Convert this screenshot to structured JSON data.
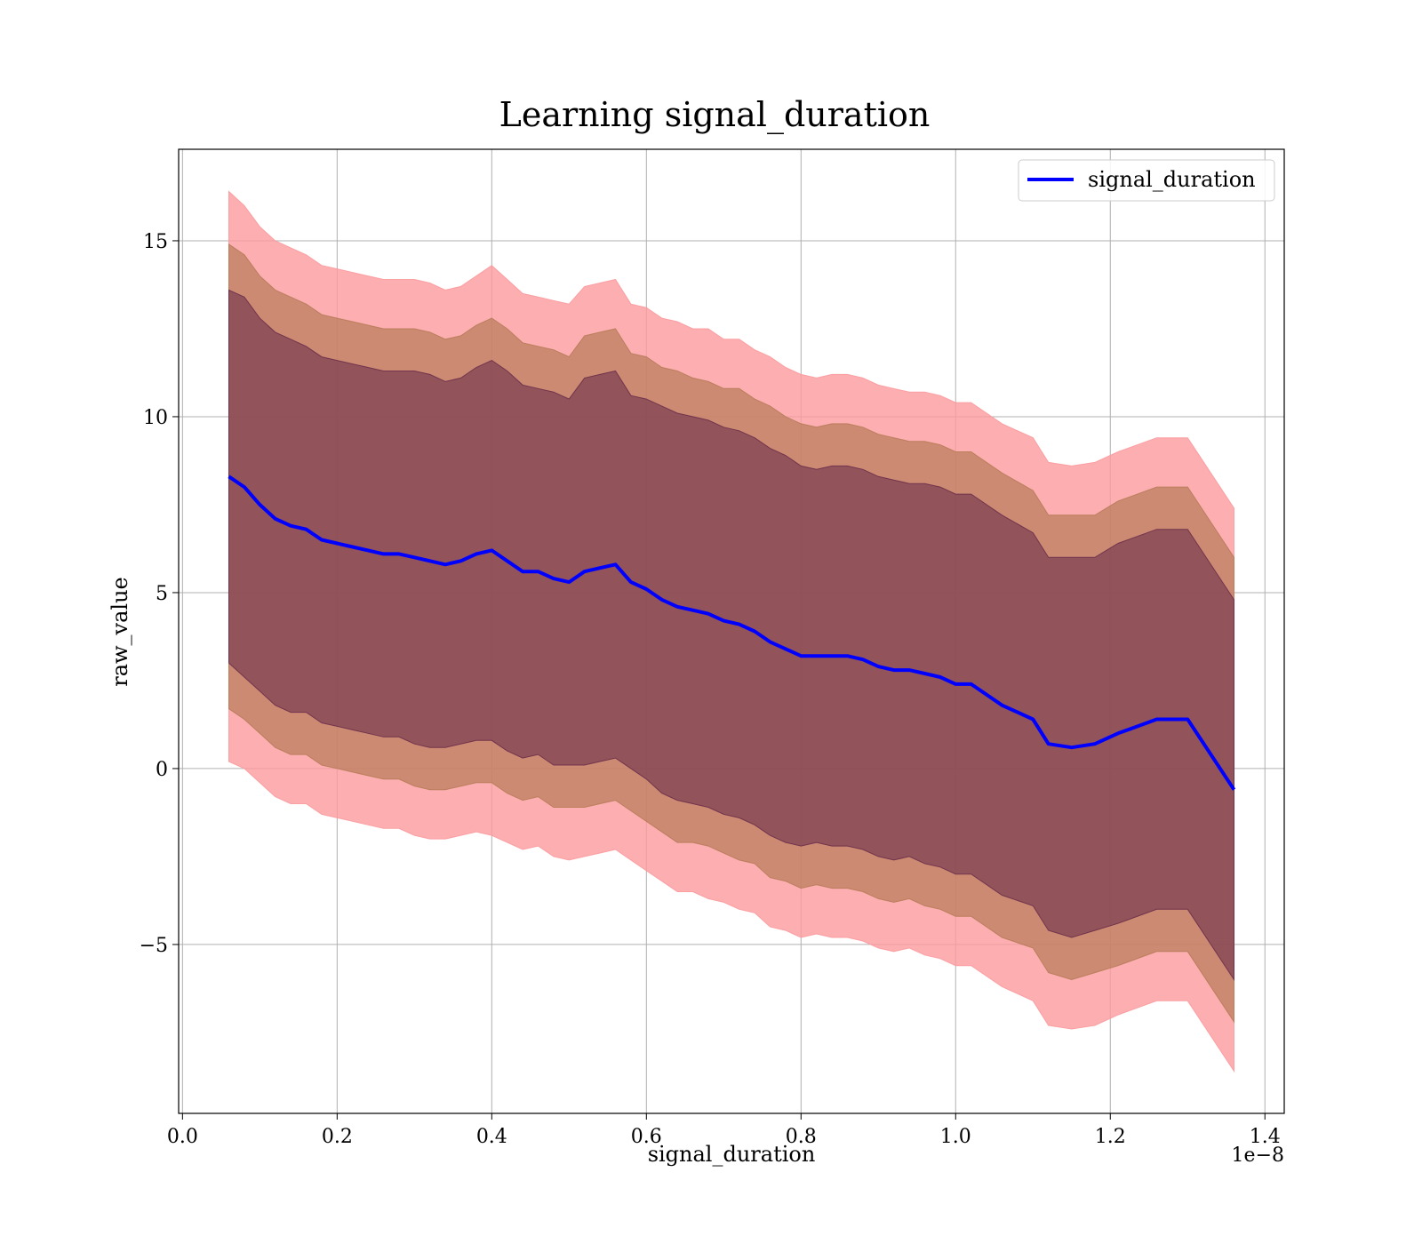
{
  "chart_data": {
    "type": "line",
    "title": "Learning signal_duration",
    "xlabel": "signal_duration",
    "ylabel": "raw_value",
    "x_offset_label": "1e−8",
    "xlim": [
      -0.005,
      1.425
    ],
    "ylim": [
      -9.8,
      17.6
    ],
    "x_ticks": [
      0.0,
      0.2,
      0.4,
      0.6,
      0.8,
      1.0,
      1.2,
      1.4
    ],
    "x_tick_labels": [
      "0.0",
      "0.2",
      "0.4",
      "0.6",
      "0.8",
      "1.0",
      "1.2",
      "1.4"
    ],
    "y_ticks": [
      -5,
      0,
      5,
      10,
      15
    ],
    "y_tick_labels": [
      "−5",
      "0",
      "5",
      "10",
      "15"
    ],
    "grid": true,
    "legend_position": "top-right",
    "x": [
      0.06,
      0.08,
      0.1,
      0.12,
      0.14,
      0.16,
      0.18,
      0.2,
      0.22,
      0.24,
      0.26,
      0.28,
      0.3,
      0.32,
      0.34,
      0.36,
      0.38,
      0.4,
      0.42,
      0.44,
      0.46,
      0.48,
      0.5,
      0.52,
      0.54,
      0.56,
      0.58,
      0.6,
      0.62,
      0.64,
      0.66,
      0.68,
      0.7,
      0.72,
      0.74,
      0.76,
      0.78,
      0.8,
      0.82,
      0.84,
      0.86,
      0.88,
      0.9,
      0.92,
      0.94,
      0.96,
      0.98,
      1.0,
      1.02,
      1.06,
      1.1,
      1.12,
      1.15,
      1.18,
      1.21,
      1.26,
      1.3,
      1.36
    ],
    "series": [
      {
        "name": "signal_duration",
        "color": "#0000ff",
        "values": [
          8.3,
          8.0,
          7.5,
          7.1,
          6.9,
          6.8,
          6.5,
          6.4,
          6.3,
          6.2,
          6.1,
          6.1,
          6.0,
          5.9,
          5.8,
          5.9,
          6.1,
          6.2,
          5.9,
          5.6,
          5.6,
          5.4,
          5.3,
          5.6,
          5.7,
          5.8,
          5.3,
          5.1,
          4.8,
          4.6,
          4.5,
          4.4,
          4.2,
          4.1,
          3.9,
          3.6,
          3.4,
          3.2,
          3.2,
          3.2,
          3.2,
          3.1,
          2.9,
          2.8,
          2.8,
          2.7,
          2.6,
          2.4,
          2.4,
          1.8,
          1.4,
          0.7,
          0.6,
          0.7,
          1.0,
          1.4,
          1.4,
          -0.6
        ]
      }
    ],
    "band_half_widths": [
      {
        "name": "inner",
        "color": "#6b2f4a",
        "opacity": 0.6,
        "values": [
          5.3,
          5.4,
          5.3,
          5.3,
          5.3,
          5.2,
          5.2,
          5.2,
          5.2,
          5.2,
          5.2,
          5.2,
          5.3,
          5.3,
          5.2,
          5.2,
          5.3,
          5.4,
          5.4,
          5.3,
          5.2,
          5.3,
          5.2,
          5.5,
          5.5,
          5.5,
          5.3,
          5.4,
          5.5,
          5.5,
          5.5,
          5.5,
          5.5,
          5.5,
          5.5,
          5.5,
          5.5,
          5.4,
          5.3,
          5.4,
          5.4,
          5.4,
          5.4,
          5.4,
          5.3,
          5.4,
          5.4,
          5.4,
          5.4,
          5.4,
          5.3,
          5.3,
          5.4,
          5.3,
          5.4,
          5.4,
          5.4,
          5.4
        ]
      },
      {
        "name": "middle",
        "color": "#b87b58",
        "opacity": 0.7,
        "values": [
          6.6,
          6.6,
          6.5,
          6.5,
          6.5,
          6.4,
          6.4,
          6.4,
          6.4,
          6.4,
          6.4,
          6.4,
          6.5,
          6.5,
          6.4,
          6.4,
          6.5,
          6.6,
          6.6,
          6.5,
          6.4,
          6.5,
          6.4,
          6.7,
          6.7,
          6.7,
          6.5,
          6.6,
          6.6,
          6.7,
          6.6,
          6.6,
          6.6,
          6.7,
          6.6,
          6.7,
          6.6,
          6.6,
          6.5,
          6.6,
          6.6,
          6.6,
          6.6,
          6.6,
          6.5,
          6.6,
          6.6,
          6.6,
          6.6,
          6.6,
          6.5,
          6.5,
          6.6,
          6.5,
          6.6,
          6.6,
          6.6,
          6.6
        ]
      },
      {
        "name": "outer",
        "color": "#fb9a9d",
        "opacity": 0.8,
        "values": [
          8.1,
          8.0,
          7.9,
          7.9,
          7.9,
          7.8,
          7.8,
          7.8,
          7.8,
          7.8,
          7.8,
          7.8,
          7.9,
          7.9,
          7.8,
          7.8,
          7.9,
          8.1,
          8.0,
          7.9,
          7.8,
          7.9,
          7.9,
          8.1,
          8.1,
          8.1,
          7.9,
          8.0,
          8.0,
          8.1,
          8.0,
          8.1,
          8.0,
          8.1,
          8.0,
          8.1,
          8.0,
          8.0,
          7.9,
          8.0,
          8.0,
          8.0,
          8.0,
          8.0,
          7.9,
          8.0,
          8.0,
          8.0,
          8.0,
          8.0,
          8.0,
          8.0,
          8.0,
          8.0,
          8.0,
          8.0,
          8.0,
          8.0
        ]
      }
    ]
  }
}
